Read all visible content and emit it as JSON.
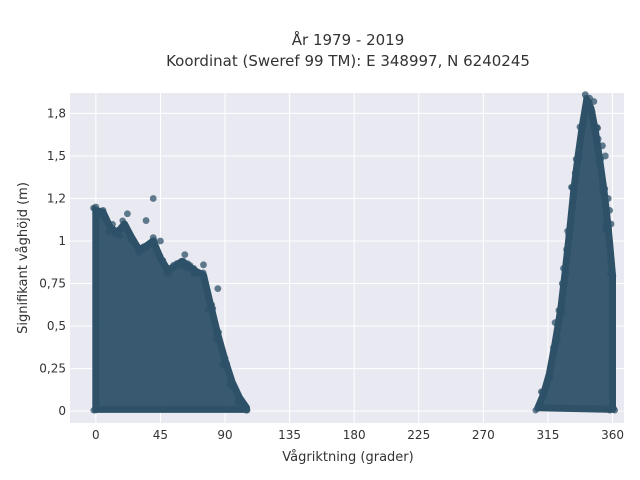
{
  "chart_data": {
    "type": "scatter",
    "title": "År 1979 - 2019",
    "subtitle": "Koordinat (Sweref 99 TM): E 348997, N 6240245",
    "xlabel": "Vågriktning (grader)",
    "ylabel": "Signifikant våghöjd (m)",
    "xlim": [
      -18,
      368
    ],
    "ylim": [
      -0.07,
      1.87
    ],
    "x_ticks": [
      0,
      45,
      90,
      135,
      180,
      225,
      270,
      315,
      360
    ],
    "x_tick_labels": [
      "0",
      "45",
      "90",
      "135",
      "180",
      "225",
      "270",
      "315",
      "360"
    ],
    "y_ticks": [
      0,
      0.25,
      0.5,
      0.75,
      1,
      1.25,
      1.5,
      1.75
    ],
    "y_tick_labels": [
      "0",
      "0,25",
      "0,5",
      "0,75",
      "1",
      "1,2",
      "1,5",
      "1,8"
    ],
    "grid": true,
    "marker_color": "#2e5168",
    "background_color": "#e9e9f1",
    "envelope": [
      {
        "name": "lobe_north_east",
        "points": [
          [
            0,
            0.01
          ],
          [
            0,
            1.18
          ],
          [
            5,
            1.17
          ],
          [
            10,
            1.08
          ],
          [
            15,
            1.05
          ],
          [
            20,
            1.1
          ],
          [
            25,
            1.02
          ],
          [
            30,
            0.95
          ],
          [
            35,
            0.97
          ],
          [
            40,
            1.0
          ],
          [
            45,
            0.9
          ],
          [
            50,
            0.83
          ],
          [
            55,
            0.85
          ],
          [
            60,
            0.88
          ],
          [
            65,
            0.85
          ],
          [
            70,
            0.82
          ],
          [
            75,
            0.8
          ],
          [
            80,
            0.62
          ],
          [
            85,
            0.45
          ],
          [
            90,
            0.3
          ],
          [
            95,
            0.17
          ],
          [
            100,
            0.08
          ],
          [
            105,
            0.02
          ],
          [
            105,
            0.01
          ]
        ]
      },
      {
        "name": "lobe_north_west",
        "points": [
          [
            308,
            0.02
          ],
          [
            312,
            0.1
          ],
          [
            316,
            0.22
          ],
          [
            320,
            0.4
          ],
          [
            324,
            0.6
          ],
          [
            327,
            0.82
          ],
          [
            330,
            1.05
          ],
          [
            333,
            1.3
          ],
          [
            336,
            1.5
          ],
          [
            339,
            1.68
          ],
          [
            342,
            1.83
          ],
          [
            345,
            1.78
          ],
          [
            348,
            1.65
          ],
          [
            351,
            1.48
          ],
          [
            354,
            1.3
          ],
          [
            357,
            1.08
          ],
          [
            360,
            0.8
          ],
          [
            360,
            0.01
          ]
        ]
      }
    ],
    "outliers": [
      [
        0,
        1.2
      ],
      [
        5,
        1.18
      ],
      [
        22,
        1.16
      ],
      [
        35,
        1.12
      ],
      [
        40,
        1.02
      ],
      [
        45,
        1.0
      ],
      [
        40,
        1.25
      ],
      [
        62,
        0.92
      ],
      [
        75,
        0.86
      ],
      [
        85,
        0.72
      ],
      [
        341,
        1.86
      ],
      [
        344,
        1.84
      ],
      [
        347,
        1.82
      ],
      [
        350,
        1.6
      ],
      [
        353,
        1.56
      ],
      [
        355,
        1.5
      ],
      [
        357,
        1.25
      ],
      [
        358,
        1.18
      ],
      [
        359,
        1.1
      ],
      [
        334,
        1.4
      ],
      [
        328,
        0.95
      ],
      [
        325,
        0.75
      ],
      [
        320,
        0.52
      ]
    ]
  }
}
